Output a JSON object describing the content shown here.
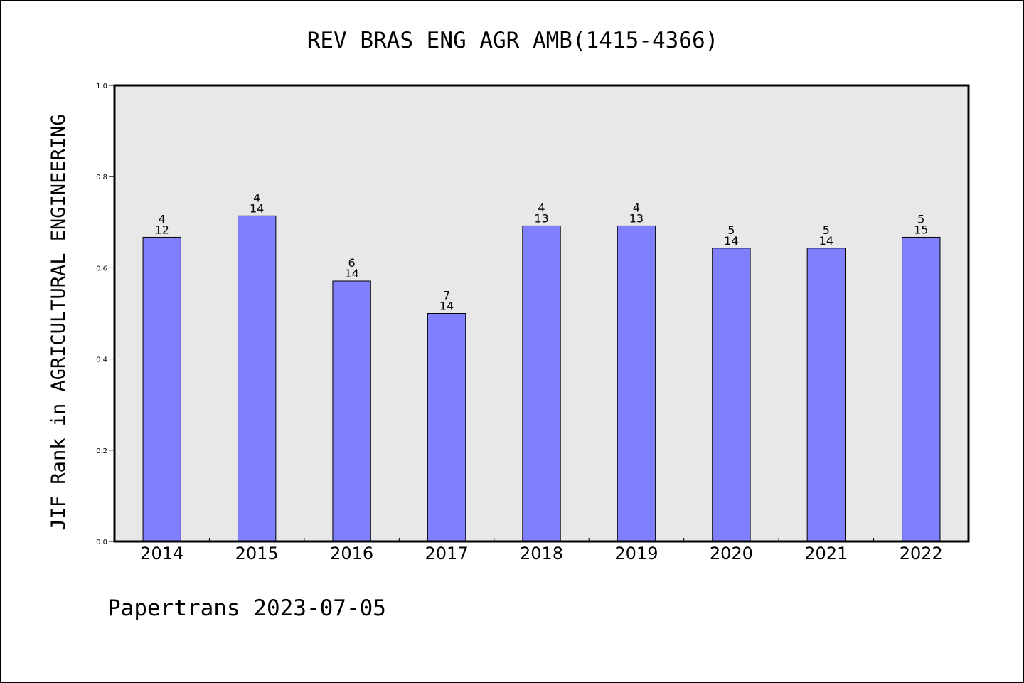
{
  "chart_data": {
    "type": "bar",
    "title": "REV BRAS ENG AGR AMB(1415-4366)",
    "xlabel": "",
    "ylabel": "JIF Rank in AGRICULTURAL ENGINEERING",
    "ylim": [
      0.0,
      1.0
    ],
    "yticks": [
      "0.0",
      "0.2",
      "0.4",
      "0.6",
      "0.8",
      "1.0"
    ],
    "categories": [
      "2014",
      "2015",
      "2016",
      "2017",
      "2018",
      "2019",
      "2020",
      "2021",
      "2022"
    ],
    "values": [
      0.667,
      0.714,
      0.571,
      0.5,
      0.692,
      0.692,
      0.643,
      0.643,
      0.667
    ],
    "rank": [
      "4",
      "4",
      "6",
      "7",
      "4",
      "4",
      "5",
      "5",
      "5"
    ],
    "total": [
      "12",
      "14",
      "14",
      "14",
      "13",
      "13",
      "14",
      "14",
      "15"
    ],
    "bar_color": "#8080ff",
    "plot_background": "#e8e8e8",
    "grid": false,
    "legend": "none"
  },
  "footer": "Papertrans 2023-07-05"
}
